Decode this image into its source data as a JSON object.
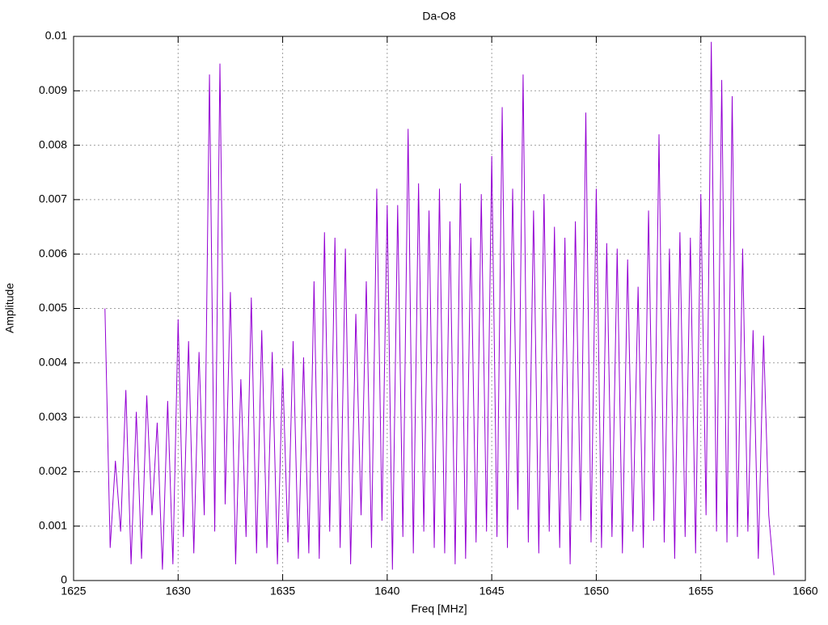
{
  "chart_data": {
    "type": "line",
    "title": "Da-O8",
    "x_label": "Freq [MHz]",
    "y_label": "Amplitude",
    "x": [
      1626.5,
      1626.75,
      1627,
      1627.25,
      1627.5,
      1627.75,
      1628,
      1628.25,
      1628.5,
      1628.75,
      1629,
      1629.25,
      1629.5,
      1629.75,
      1630,
      1630.25,
      1630.5,
      1630.75,
      1631,
      1631.25,
      1631.5,
      1631.75,
      1632,
      1632.25,
      1632.5,
      1632.75,
      1633,
      1633.25,
      1633.5,
      1633.75,
      1634,
      1634.25,
      1634.5,
      1634.75,
      1635,
      1635.25,
      1635.5,
      1635.75,
      1636,
      1636.25,
      1636.5,
      1636.75,
      1637,
      1637.25,
      1637.5,
      1637.75,
      1638,
      1638.25,
      1638.5,
      1638.75,
      1639,
      1639.25,
      1639.5,
      1639.75,
      1640,
      1640.25,
      1640.5,
      1640.75,
      1641,
      1641.25,
      1641.5,
      1641.75,
      1642,
      1642.25,
      1642.5,
      1642.75,
      1643,
      1643.25,
      1643.5,
      1643.75,
      1644,
      1644.25,
      1644.5,
      1644.75,
      1645,
      1645.25,
      1645.5,
      1645.75,
      1646,
      1646.25,
      1646.5,
      1646.75,
      1647,
      1647.25,
      1647.5,
      1647.75,
      1648,
      1648.25,
      1648.5,
      1648.75,
      1649,
      1649.25,
      1649.5,
      1649.75,
      1650,
      1650.25,
      1650.5,
      1650.75,
      1651,
      1651.25,
      1651.5,
      1651.75,
      1652,
      1652.25,
      1652.5,
      1652.75,
      1653,
      1653.25,
      1653.5,
      1653.75,
      1654,
      1654.25,
      1654.5,
      1654.75,
      1655,
      1655.25,
      1655.5,
      1655.75,
      1656,
      1656.25,
      1656.5,
      1656.75,
      1657,
      1657.25,
      1657.5,
      1657.75,
      1658,
      1658.25,
      1658.5
    ],
    "series": [
      {
        "color": "#9400d3",
        "values": [
          0.005,
          0.0006,
          0.0022,
          0.0009,
          0.0035,
          0.0003,
          0.0031,
          0.0004,
          0.0034,
          0.0012,
          0.0029,
          0.0002,
          0.0033,
          0.0003,
          0.0048,
          0.0008,
          0.0044,
          0.0005,
          0.0042,
          0.0012,
          0.0093,
          0.0009,
          0.0095,
          0.0014,
          0.0053,
          0.0003,
          0.0037,
          0.0008,
          0.0052,
          0.0005,
          0.0046,
          0.0006,
          0.0042,
          0.0003,
          0.0039,
          0.0007,
          0.0044,
          0.0004,
          0.0041,
          0.0005,
          0.0055,
          0.0004,
          0.0064,
          0.0009,
          0.0063,
          0.0006,
          0.0061,
          0.0003,
          0.0049,
          0.0012,
          0.0055,
          0.0006,
          0.0072,
          0.0011,
          0.0069,
          0.0002,
          0.0069,
          0.0008,
          0.0083,
          0.0005,
          0.0073,
          0.0009,
          0.0068,
          0.0006,
          0.0072,
          0.0005,
          0.0066,
          0.0003,
          0.0073,
          0.0004,
          0.0063,
          0.0007,
          0.0071,
          0.0009,
          0.0078,
          0.0008,
          0.0087,
          0.0006,
          0.0072,
          0.0013,
          0.0093,
          0.0007,
          0.0068,
          0.0005,
          0.0071,
          0.0009,
          0.0065,
          0.0006,
          0.0063,
          0.0003,
          0.0066,
          0.0011,
          0.0086,
          0.0007,
          0.0072,
          0.0006,
          0.0062,
          0.0008,
          0.0061,
          0.0005,
          0.0059,
          0.0009,
          0.0054,
          0.0006,
          0.0068,
          0.0011,
          0.0082,
          0.0007,
          0.0061,
          0.0004,
          0.0064,
          0.0008,
          0.0063,
          0.0005,
          0.0071,
          0.0012,
          0.0099,
          0.0009,
          0.0092,
          0.0007,
          0.0089,
          0.0008,
          0.0061,
          0.0009,
          0.0046,
          0.0004,
          0.0045,
          0.0012,
          0.0001
        ]
      }
    ],
    "xlim": [
      1625,
      1660
    ],
    "xticks": [
      1625,
      1630,
      1635,
      1640,
      1645,
      1650,
      1655,
      1660
    ],
    "ylim": [
      0,
      0.01
    ],
    "yticks": [
      0,
      0.001,
      0.002,
      0.003,
      0.004,
      0.005,
      0.006,
      0.007,
      0.008,
      0.009,
      0.01
    ],
    "grid": true
  }
}
